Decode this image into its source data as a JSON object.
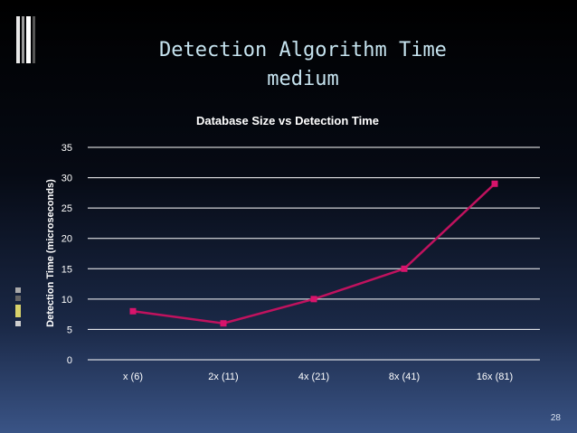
{
  "slide": {
    "title": "Detection Algorithm Time\nmedium",
    "page_number": "28"
  },
  "chart_data": {
    "type": "line",
    "title": "Database Size  vs  Detection Time",
    "ylabel": "Detection Time (microseconds)",
    "xlabel": "",
    "categories": [
      "x (6)",
      "2x (11)",
      "4x (21)",
      "8x (41)",
      "16x (81)"
    ],
    "series": [
      {
        "values": [
          8,
          6,
          10,
          15,
          29
        ]
      }
    ],
    "ylim": [
      0,
      35
    ],
    "yticks": [
      0,
      5,
      10,
      15,
      20,
      25,
      30,
      35
    ],
    "grid": true,
    "legend": "none",
    "colors": {
      "line": "#c0125e",
      "marker": "#d8146c",
      "grid": "#ffffff",
      "text": "#ffffff"
    }
  }
}
